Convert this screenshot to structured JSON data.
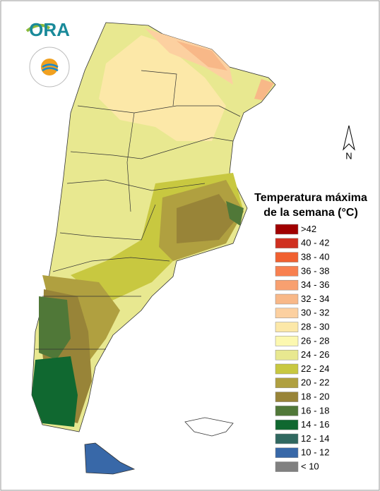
{
  "logo": {
    "text": "ORA"
  },
  "north_arrow": {
    "label": "N"
  },
  "legend": {
    "title_lines": [
      "Temperatura máxima",
      "de la semana (°C)"
    ],
    "items": [
      {
        "label": ">42",
        "color": "#a00000"
      },
      {
        "label": "40 - 42",
        "color": "#d03020"
      },
      {
        "label": "38 - 40",
        "color": "#f06030"
      },
      {
        "label": "36 - 38",
        "color": "#f88050"
      },
      {
        "label": "34 - 36",
        "color": "#f8a070"
      },
      {
        "label": "32 - 34",
        "color": "#f8b888"
      },
      {
        "label": "30 - 32",
        "color": "#fcd0a0"
      },
      {
        "label": "28 - 30",
        "color": "#fce8a8"
      },
      {
        "label": "26 - 28",
        "color": "#fcf8b0"
      },
      {
        "label": "24 - 26",
        "color": "#e8e890"
      },
      {
        "label": "22 - 24",
        "color": "#c8c840"
      },
      {
        "label": "20 - 22",
        "color": "#b0a040"
      },
      {
        "label": "18 - 20",
        "color": "#988438"
      },
      {
        "label": "16 - 18",
        "color": "#507838"
      },
      {
        "label": "14 - 16",
        "color": "#106830"
      },
      {
        "label": "12 - 14",
        "color": "#306860"
      },
      {
        "label": "10 - 12",
        "color": "#3868a8"
      },
      {
        "label": "< 10",
        "color": "#808080"
      }
    ]
  }
}
